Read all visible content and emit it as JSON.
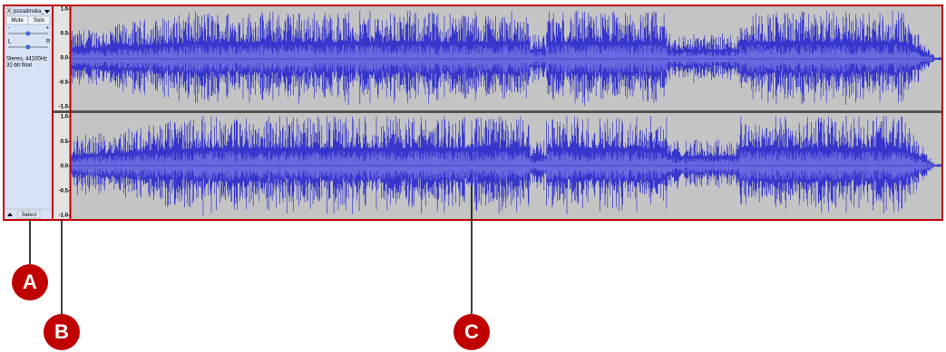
{
  "track_panel": {
    "close": "X",
    "name": "pozadinska_",
    "mute": "Mute",
    "solo": "Solo",
    "gain_min": "-",
    "gain_max": "+",
    "pan_left": "L",
    "pan_right": "R",
    "format": "Stereo, 44100Hz",
    "bit_depth": "32-bit float",
    "select": "Select"
  },
  "ruler": {
    "channels": [
      [
        "1.0",
        "0.5",
        "0.0",
        "-0.5",
        "-1.0"
      ],
      [
        "1.0",
        "0.5",
        "0.0",
        "-0.5",
        "-1.0"
      ]
    ]
  },
  "callouts": [
    "A",
    "B",
    "C"
  ]
}
